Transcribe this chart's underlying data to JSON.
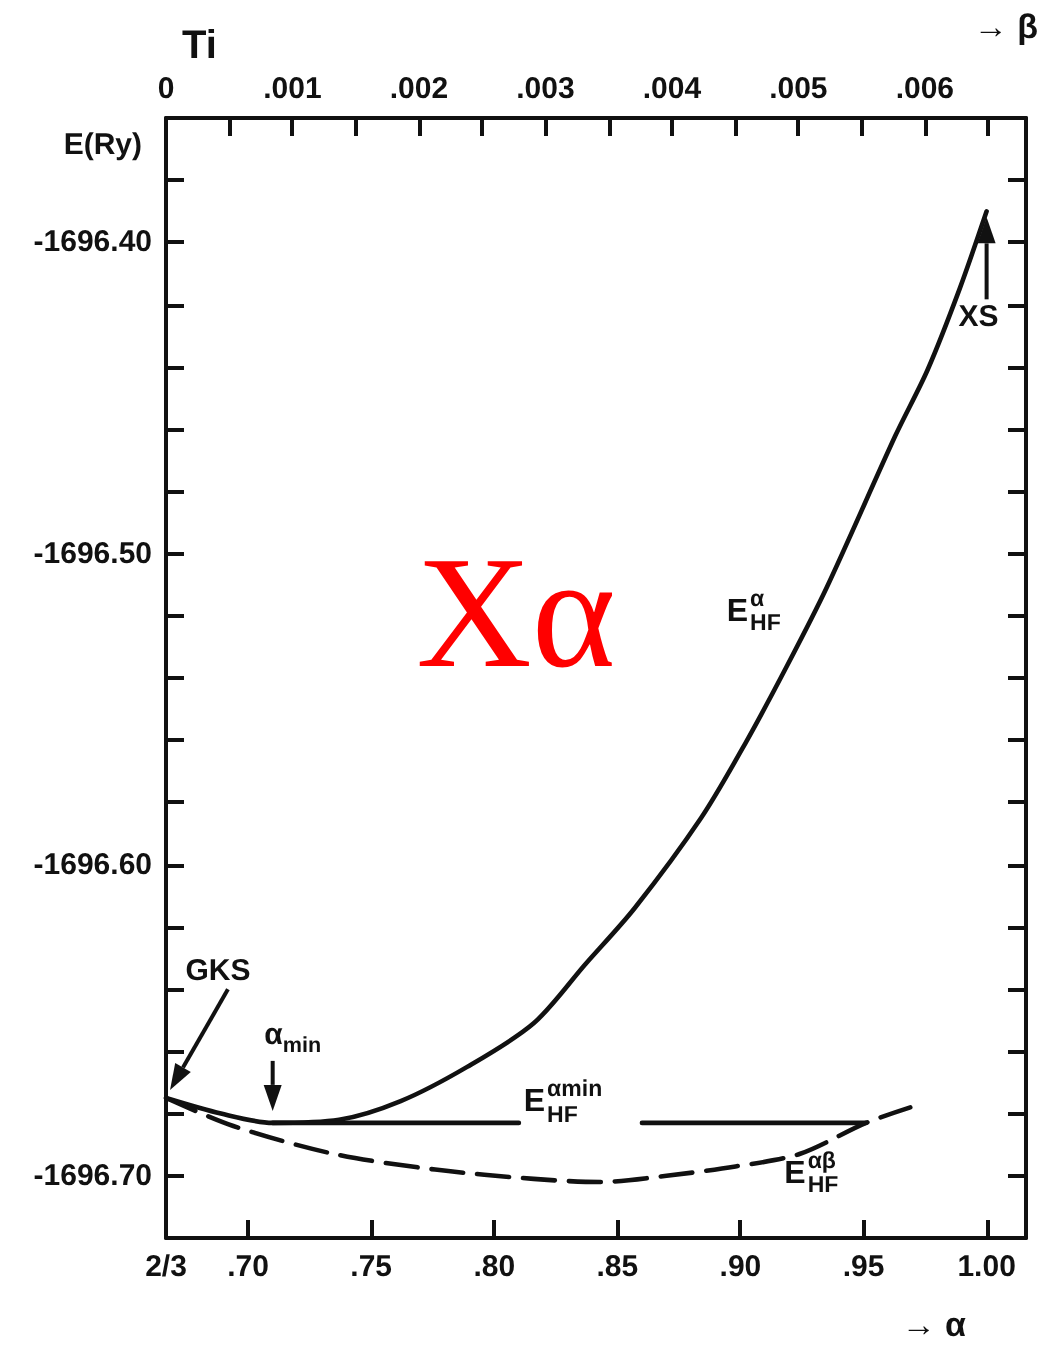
{
  "chart_data": {
    "type": "line",
    "title": "Ti",
    "xlabel": "→ α",
    "x2label": "→ β",
    "ylabel": "E(Ry)",
    "xlim": [
      0.6666666666666666,
      1.016
    ],
    "xticks": [
      {
        "value": 0.6666666666666666,
        "label": "2/3"
      },
      {
        "value": 0.7,
        "label": ".70"
      },
      {
        "value": 0.75,
        "label": ".75"
      },
      {
        "value": 0.8,
        "label": ".80"
      },
      {
        "value": 0.85,
        "label": ".85"
      },
      {
        "value": 0.9,
        "label": ".90"
      },
      {
        "value": 0.95,
        "label": ".95"
      },
      {
        "value": 1.0,
        "label": "1.00"
      }
    ],
    "x2lim": [
      0,
      0.0068
    ],
    "x2ticks": [
      0,
      {
        "value": 0.0005,
        "label": null
      },
      {
        "value": 0.001,
        "label": ".001"
      },
      {
        "value": 0.0015,
        "label": null
      },
      {
        "value": 0.002,
        "label": ".002"
      },
      {
        "value": 0.0025,
        "label": null
      },
      {
        "value": 0.003,
        "label": ".003"
      },
      {
        "value": 0.0035,
        "label": null
      },
      {
        "value": 0.004,
        "label": ".004"
      },
      {
        "value": 0.0045,
        "label": null
      },
      {
        "value": 0.005,
        "label": ".005"
      },
      {
        "value": 0.0055,
        "label": null
      },
      {
        "value": 0.006,
        "label": ".006"
      },
      {
        "value": 0.0065,
        "label": null
      }
    ],
    "ylim": [
      -1696.72,
      -1696.36
    ],
    "yticks": [
      {
        "value": -1696.7,
        "label": "-1696.70"
      },
      {
        "value": -1696.68,
        "label": null
      },
      {
        "value": -1696.66,
        "label": null
      },
      {
        "value": -1696.64,
        "label": null
      },
      {
        "value": -1696.62,
        "label": null
      },
      {
        "value": -1696.6,
        "label": "-1696.60"
      },
      {
        "value": -1696.58,
        "label": null
      },
      {
        "value": -1696.56,
        "label": null
      },
      {
        "value": -1696.54,
        "label": null
      },
      {
        "value": -1696.52,
        "label": null
      },
      {
        "value": -1696.5,
        "label": "-1696.50"
      },
      {
        "value": -1696.48,
        "label": null
      },
      {
        "value": -1696.46,
        "label": null
      },
      {
        "value": -1696.44,
        "label": null
      },
      {
        "value": -1696.42,
        "label": null
      },
      {
        "value": -1696.4,
        "label": "-1696.40"
      },
      {
        "value": -1696.38,
        "label": null
      }
    ],
    "line_style": "solid",
    "series": [
      {
        "name": "E$^{α}$$_{HF}$",
        "color": "#111111",
        "x": [
          0.6667,
          0.689,
          0.71,
          0.737,
          0.762,
          0.789,
          0.816,
          0.837,
          0.857,
          0.884,
          0.902,
          0.919,
          0.935,
          0.963,
          0.976,
          0.989,
          1.0
        ],
        "values": [
          -1696.675,
          -1696.68,
          -1696.683,
          -1696.682,
          -1696.676,
          -1696.665,
          -1696.651,
          -1696.632,
          -1696.614,
          -1696.585,
          -1696.561,
          -1696.536,
          -1696.511,
          -1696.462,
          -1696.441,
          -1696.415,
          -1696.39
        ]
      },
      {
        "name": "E$^{αmin}$$_{HF}$",
        "color": "#111111",
        "x": [
          0.71,
          0.81,
          0.835,
          0.86,
          0.951
        ],
        "values": [
          -1696.683,
          -1696.683,
          null,
          -1696.683,
          -1696.683
        ]
      },
      {
        "name": "E$^{αβ}$$_{HF}$",
        "color": "#111111",
        "line_style": "dashed",
        "x": [
          0.6667,
          0.694,
          0.735,
          0.776,
          0.816,
          0.843,
          0.87,
          0.898,
          0.924,
          0.951,
          0.969
        ],
        "values": [
          -1696.675,
          -1696.684,
          -1696.693,
          -1696.698,
          -1696.701,
          -1696.702,
          -1696.7,
          -1696.697,
          -1696.693,
          -1696.683,
          -1696.678
        ]
      }
    ],
    "annotations": [
      "Xα",
      "GKS",
      {
        "text": "α$_{min}$",
        "x": 0.71,
        "y": -1696.683
      },
      {
        "text": "XS",
        "x": 1.0,
        "y": -1696.39
      }
    ]
  }
}
